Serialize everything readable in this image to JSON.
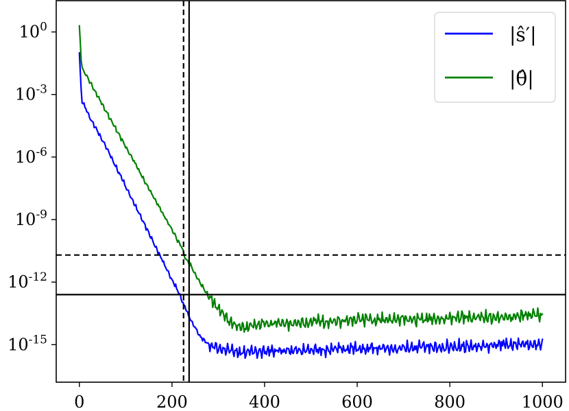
{
  "chart_data": {
    "type": "line",
    "title": "",
    "xlabel": "",
    "ylabel": "",
    "xlim": [
      -50,
      1050
    ],
    "ylim": [
      -16.8,
      1.5
    ],
    "y_scale": "log10",
    "grid": false,
    "legend_position": "top-right",
    "xticks": [
      0,
      200,
      400,
      600,
      800,
      1000
    ],
    "xtick_labels": [
      "0",
      "200",
      "400",
      "600",
      "800",
      "1000"
    ],
    "yticks": [
      0,
      -3,
      -6,
      -9,
      -12,
      -15
    ],
    "ytick_labels": [
      {
        "base": "10",
        "exp": "0"
      },
      {
        "base": "10",
        "exp": "-3"
      },
      {
        "base": "10",
        "exp": "-6"
      },
      {
        "base": "10",
        "exp": "-9"
      },
      {
        "base": "10",
        "exp": "-12"
      },
      {
        "base": "10",
        "exp": "-15"
      }
    ],
    "series": [
      {
        "name": "|ŝ′|",
        "color": "#0000ff",
        "log10_values": {
          "x": [
            0,
            5,
            10,
            20,
            40,
            60,
            80,
            100,
            120,
            140,
            160,
            180,
            200,
            210,
            220,
            230,
            240,
            250,
            260,
            280,
            300,
            350,
            400,
            450,
            500,
            550,
            600,
            650,
            700,
            750,
            800,
            850,
            900,
            950,
            1000
          ],
          "y": [
            -1.0,
            -3.3,
            -3.5,
            -4.0,
            -4.8,
            -5.6,
            -6.5,
            -7.4,
            -8.3,
            -9.2,
            -10.1,
            -11.0,
            -11.9,
            -12.3,
            -12.8,
            -13.3,
            -13.8,
            -14.2,
            -14.6,
            -15.0,
            -15.2,
            -15.4,
            -15.3,
            -15.3,
            -15.3,
            -15.2,
            -15.2,
            -15.2,
            -15.2,
            -15.1,
            -15.1,
            -15.1,
            -15.0,
            -15.0,
            -15.0
          ]
        }
      },
      {
        "name": "|θ̂|",
        "color": "#008000",
        "log10_values": {
          "x": [
            0,
            5,
            10,
            20,
            40,
            60,
            80,
            100,
            120,
            140,
            160,
            180,
            200,
            220,
            230,
            240,
            250,
            260,
            280,
            300,
            320,
            340,
            360,
            380,
            400,
            450,
            500,
            550,
            600,
            650,
            700,
            750,
            800,
            850,
            900,
            950,
            1000
          ],
          "y": [
            0.3,
            -1.7,
            -1.9,
            -2.3,
            -3.1,
            -3.9,
            -4.7,
            -5.5,
            -6.3,
            -7.1,
            -7.9,
            -8.7,
            -9.5,
            -10.3,
            -10.9,
            -11.2,
            -11.6,
            -12.0,
            -12.7,
            -13.3,
            -13.8,
            -14.1,
            -14.2,
            -14.1,
            -14.0,
            -14.0,
            -13.9,
            -13.9,
            -13.8,
            -13.8,
            -13.8,
            -13.8,
            -13.7,
            -13.7,
            -13.7,
            -13.6,
            -13.6
          ]
        }
      }
    ],
    "reference_lines": [
      {
        "orientation": "horizontal",
        "log10_y": -10.7,
        "style": "dashed"
      },
      {
        "orientation": "horizontal",
        "log10_y": -12.6,
        "style": "solid"
      },
      {
        "orientation": "vertical",
        "x": 225,
        "style": "dashed"
      },
      {
        "orientation": "vertical",
        "x": 237,
        "style": "solid"
      }
    ]
  }
}
